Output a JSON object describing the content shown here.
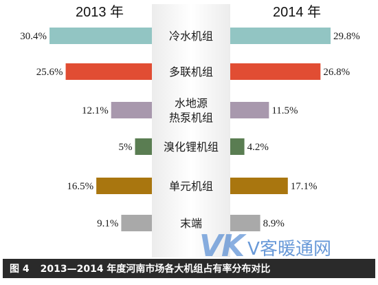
{
  "chart_data": {
    "type": "bar",
    "layout": "butterfly (mirrored horizontal bars)",
    "left_title": "2013 年",
    "right_title": "2014 年",
    "categories": [
      {
        "lines": [
          "冷水机组"
        ]
      },
      {
        "lines": [
          "多联机组"
        ]
      },
      {
        "lines": [
          "水地源",
          "热泵机组"
        ]
      },
      {
        "lines": [
          "溴化锂机组"
        ]
      },
      {
        "lines": [
          "单元机组"
        ]
      },
      {
        "lines": [
          "末端"
        ]
      }
    ],
    "colors": [
      "#92c5c3",
      "#e14d33",
      "#a898ad",
      "#5a7d52",
      "#a9760f",
      "#a9a9a9"
    ],
    "series": [
      {
        "name": "2013 年",
        "values": [
          30.4,
          25.6,
          12.1,
          5,
          16.5,
          9.1
        ],
        "labels": [
          "30.4%",
          "25.6%",
          "12.1%",
          "5%",
          "16.5%",
          "9.1%"
        ]
      },
      {
        "name": "2014 年",
        "values": [
          29.8,
          26.8,
          11.5,
          4.2,
          17.1,
          8.9
        ],
        "labels": [
          "29.8%",
          "26.8%",
          "11.5%",
          "4.2%",
          "17.1%",
          "8.9%"
        ]
      }
    ],
    "unit": "%",
    "xlim": [
      0,
      31
    ]
  },
  "caption": {
    "label": "图 4",
    "text": "2013—2014 年度河南市场各大机组占有率分布对比"
  },
  "watermark": {
    "logo": "VK",
    "text": "V客暖通网"
  }
}
